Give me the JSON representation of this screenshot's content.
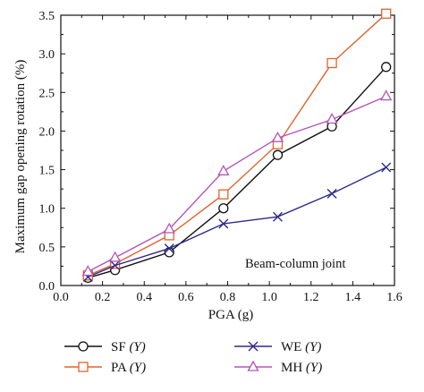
{
  "chart_data": {
    "type": "line",
    "xlabel": "PGA (g)",
    "ylabel": "Maximum gap opening rotation (%)",
    "xlim": [
      0.0,
      1.6
    ],
    "ylim": [
      0.0,
      3.5
    ],
    "xticks": [
      "0.0",
      "0.2",
      "0.4",
      "0.6",
      "0.8",
      "1.0",
      "1.2",
      "1.4",
      "1.6"
    ],
    "yticks": [
      "0.0",
      "0.5",
      "1.0",
      "1.5",
      "2.0",
      "2.5",
      "3.0",
      "3.5"
    ],
    "x": [
      0.13,
      0.26,
      0.52,
      0.78,
      1.04,
      1.3,
      1.56
    ],
    "annotation": "Beam-column joint",
    "grid": false,
    "legend_position": "bottom",
    "series": [
      {
        "name": "SF",
        "name_suffix": "(Y)",
        "marker": "circle",
        "color": "#111111",
        "values": [
          0.1,
          0.2,
          0.43,
          1.0,
          1.69,
          2.06,
          2.83
        ]
      },
      {
        "name": "PA",
        "name_suffix": "(Y)",
        "marker": "square",
        "color": "#e0632c",
        "values": [
          0.13,
          0.28,
          0.65,
          1.18,
          1.83,
          2.88,
          3.52
        ]
      },
      {
        "name": "WE",
        "name_suffix": "(Y)",
        "marker": "cross",
        "color": "#2e2a8c",
        "values": [
          0.11,
          0.26,
          0.48,
          0.8,
          0.89,
          1.19,
          1.53
        ]
      },
      {
        "name": "MH",
        "name_suffix": "(Y)",
        "marker": "triangle",
        "color": "#b255b8",
        "values": [
          0.18,
          0.36,
          0.73,
          1.48,
          1.91,
          2.15,
          2.45
        ]
      }
    ]
  }
}
